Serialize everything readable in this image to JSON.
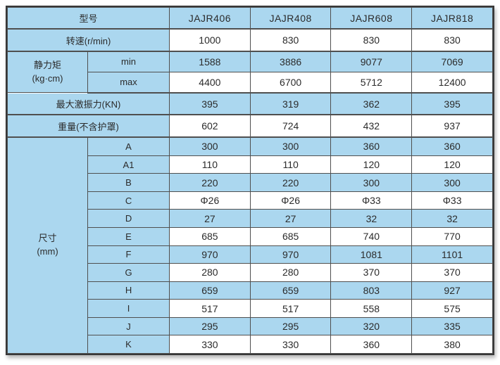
{
  "colors": {
    "cell_blue": "#abd7ef",
    "cell_white": "#ffffff",
    "border_inner": "#4f4f4f",
    "border_outer": "#383838",
    "text": "#2b2b2b"
  },
  "chart_data": {
    "type": "table",
    "title": "",
    "header_label": "型号",
    "models": [
      "JAJR406",
      "JAJR408",
      "JAJR608",
      "JAJR818"
    ],
    "rows": [
      {
        "label": "转速(r/min)",
        "values": [
          "1000",
          "830",
          "830",
          "830"
        ]
      },
      {
        "group": "静力矩 (kg·cm)",
        "label": "min",
        "values": [
          "1588",
          "3886",
          "9077",
          "7069"
        ]
      },
      {
        "group": "静力矩 (kg·cm)",
        "label": "max",
        "values": [
          "4400",
          "6700",
          "5712",
          "12400"
        ]
      },
      {
        "label": "最大激振力(KN)",
        "values": [
          "395",
          "319",
          "362",
          "395"
        ]
      },
      {
        "label": "重量(不含护罩)",
        "values": [
          "602",
          "724",
          "432",
          "937"
        ]
      },
      {
        "group": "尺寸 (mm)",
        "label": "A",
        "values": [
          "300",
          "300",
          "360",
          "360"
        ]
      },
      {
        "group": "尺寸 (mm)",
        "label": "A1",
        "values": [
          "110",
          "110",
          "120",
          "120"
        ]
      },
      {
        "group": "尺寸 (mm)",
        "label": "B",
        "values": [
          "220",
          "220",
          "300",
          "300"
        ]
      },
      {
        "group": "尺寸 (mm)",
        "label": "C",
        "values": [
          "Φ26",
          "Φ26",
          "Φ33",
          "Φ33"
        ]
      },
      {
        "group": "尺寸 (mm)",
        "label": "D",
        "values": [
          "27",
          "27",
          "32",
          "32"
        ]
      },
      {
        "group": "尺寸 (mm)",
        "label": "E",
        "values": [
          "685",
          "685",
          "740",
          "770"
        ]
      },
      {
        "group": "尺寸 (mm)",
        "label": "F",
        "values": [
          "970",
          "970",
          "1081",
          "1101"
        ]
      },
      {
        "group": "尺寸 (mm)",
        "label": "G",
        "values": [
          "280",
          "280",
          "370",
          "370"
        ]
      },
      {
        "group": "尺寸 (mm)",
        "label": "H",
        "values": [
          "659",
          "659",
          "803",
          "927"
        ]
      },
      {
        "group": "尺寸 (mm)",
        "label": "I",
        "values": [
          "517",
          "517",
          "558",
          "575"
        ]
      },
      {
        "group": "尺寸 (mm)",
        "label": "J",
        "values": [
          "295",
          "295",
          "320",
          "335"
        ]
      },
      {
        "group": "尺寸 (mm)",
        "label": "K",
        "values": [
          "330",
          "330",
          "360",
          "380"
        ]
      }
    ]
  },
  "table": {
    "columns_header": {
      "label": "型号",
      "models": [
        "JAJR406",
        "JAJR408",
        "JAJR608",
        "JAJR818"
      ]
    },
    "rows": [
      {
        "label": "转速(r/min)",
        "labelspan": 2,
        "shade": "white",
        "section_end": true,
        "values": [
          "1000",
          "830",
          "830",
          "830"
        ]
      },
      {
        "group": {
          "label": "静力矩\n(kg·cm)",
          "rowspan": 2
        },
        "label": "min",
        "shade": "blue",
        "values": [
          "1588",
          "3886",
          "9077",
          "7069"
        ]
      },
      {
        "label": "max",
        "shade": "white",
        "section_end": true,
        "values": [
          "4400",
          "6700",
          "5712",
          "12400"
        ]
      },
      {
        "label": "最大激振力(KN)",
        "labelspan": 2,
        "shade": "blue",
        "section_end": true,
        "values": [
          "395",
          "319",
          "362",
          "395"
        ]
      },
      {
        "label": "重量(不含护罩)",
        "labelspan": 2,
        "shade": "white",
        "section_end": true,
        "values": [
          "602",
          "724",
          "432",
          "937"
        ]
      },
      {
        "group": {
          "label": "尺寸\n(mm)",
          "rowspan": 12
        },
        "label": "A",
        "shade": "blue",
        "values": [
          "300",
          "300",
          "360",
          "360"
        ]
      },
      {
        "label": "A1",
        "shade": "white",
        "values": [
          "110",
          "110",
          "120",
          "120"
        ]
      },
      {
        "label": "B",
        "shade": "blue",
        "values": [
          "220",
          "220",
          "300",
          "300"
        ]
      },
      {
        "label": "C",
        "shade": "white",
        "values": [
          "Φ26",
          "Φ26",
          "Φ33",
          "Φ33"
        ]
      },
      {
        "label": "D",
        "shade": "blue",
        "values": [
          "27",
          "27",
          "32",
          "32"
        ]
      },
      {
        "label": "E",
        "shade": "white",
        "values": [
          "685",
          "685",
          "740",
          "770"
        ]
      },
      {
        "label": "F",
        "shade": "blue",
        "values": [
          "970",
          "970",
          "1081",
          "1101"
        ]
      },
      {
        "label": "G",
        "shade": "white",
        "values": [
          "280",
          "280",
          "370",
          "370"
        ]
      },
      {
        "label": "H",
        "shade": "blue",
        "values": [
          "659",
          "659",
          "803",
          "927"
        ]
      },
      {
        "label": "I",
        "shade": "white",
        "values": [
          "517",
          "517",
          "558",
          "575"
        ]
      },
      {
        "label": "J",
        "shade": "blue",
        "values": [
          "295",
          "295",
          "320",
          "335"
        ]
      },
      {
        "label": "K",
        "shade": "white",
        "values": [
          "330",
          "330",
          "360",
          "380"
        ]
      }
    ]
  }
}
